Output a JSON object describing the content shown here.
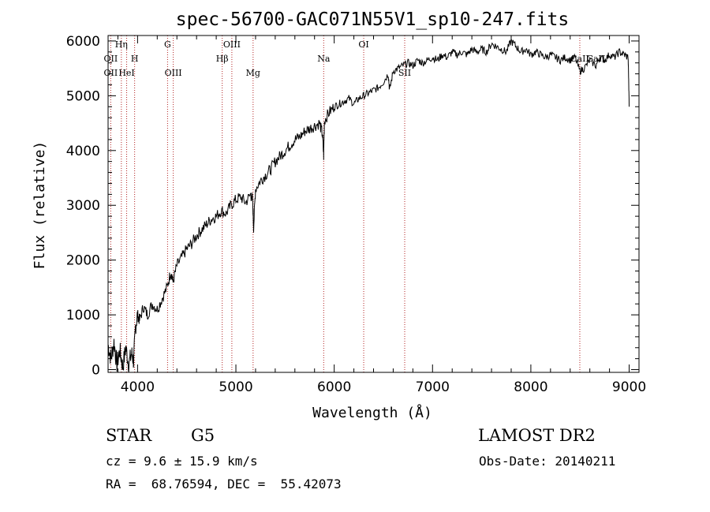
{
  "chart_data": {
    "type": "line",
    "title": "spec-56700-GAC071N55V1_sp10-247.fits",
    "xlabel": "Wavelength (Å)",
    "ylabel": "Flux (relative)",
    "xlim": [
      3700,
      9100
    ],
    "ylim": [
      -50,
      6100
    ],
    "xticks": [
      4000,
      5000,
      6000,
      7000,
      8000,
      9000
    ],
    "yticks": [
      0,
      1000,
      2000,
      3000,
      4000,
      5000,
      6000
    ],
    "xtick_labels": [
      "4000",
      "5000",
      "6000",
      "7000",
      "8000",
      "9000"
    ],
    "ytick_labels": [
      "0",
      "1000",
      "2000",
      "3000",
      "4000",
      "5000",
      "6000"
    ],
    "series": [
      {
        "values_x": [
          3700,
          3730,
          3760,
          3790,
          3820,
          3850,
          3880,
          3910,
          3940,
          3960,
          3980,
          4000,
          4020,
          4060,
          4100,
          4150,
          4200,
          4250,
          4300,
          4340,
          4360,
          4400,
          4450,
          4500,
          4550,
          4600,
          4650,
          4700,
          4750,
          4800,
          4850,
          4900,
          4950,
          5000,
          5050,
          5100,
          5150,
          5170,
          5180,
          5200,
          5250,
          5300,
          5350,
          5400,
          5450,
          5500,
          5550,
          5600,
          5650,
          5700,
          5750,
          5800,
          5850,
          5880,
          5893,
          5900,
          5950,
          6000,
          6050,
          6100,
          6150,
          6200,
          6250,
          6300,
          6350,
          6400,
          6450,
          6500,
          6550,
          6563,
          6600,
          6650,
          6700,
          6750,
          6800,
          6850,
          6900,
          6950,
          7000,
          7050,
          7100,
          7150,
          7200,
          7250,
          7300,
          7350,
          7400,
          7450,
          7500,
          7550,
          7600,
          7650,
          7700,
          7750,
          7800,
          7850,
          7900,
          7950,
          8000,
          8050,
          8100,
          8150,
          8200,
          8250,
          8300,
          8350,
          8400,
          8450,
          8498,
          8542,
          8600,
          8662,
          8700,
          8750,
          8800,
          8850,
          8900,
          8950,
          8990,
          9000
        ],
        "values_y": [
          450,
          200,
          500,
          100,
          350,
          50,
          400,
          100,
          300,
          150,
          800,
          1000,
          900,
          1150,
          1000,
          1200,
          1100,
          1300,
          1500,
          1800,
          1600,
          1900,
          2050,
          2200,
          2300,
          2450,
          2550,
          2650,
          2750,
          2800,
          2900,
          2850,
          3000,
          3100,
          3150,
          3050,
          3200,
          3100,
          2600,
          3300,
          3450,
          3550,
          3650,
          3800,
          3900,
          4000,
          4100,
          4200,
          4250,
          4350,
          4400,
          4450,
          4500,
          4300,
          3900,
          4550,
          4700,
          4800,
          4850,
          4900,
          4950,
          4850,
          4950,
          5000,
          5050,
          5100,
          5150,
          5250,
          5400,
          5100,
          5450,
          5500,
          5550,
          5600,
          5550,
          5650,
          5600,
          5650,
          5700,
          5650,
          5750,
          5700,
          5800,
          5750,
          5800,
          5750,
          5850,
          5800,
          5850,
          5800,
          5950,
          5900,
          5850,
          5800,
          6000,
          5900,
          5800,
          5850,
          5750,
          5800,
          5750,
          5700,
          5750,
          5700,
          5650,
          5700,
          5650,
          5700,
          5450,
          5500,
          5650,
          5550,
          5700,
          5650,
          5750,
          5700,
          5800,
          5750,
          5700,
          4800
        ]
      }
    ],
    "spectral_lines": [
      {
        "label": "OII",
        "x": 3727,
        "row": 2
      },
      {
        "label": "Hη",
        "x": 3835,
        "row": 0
      },
      {
        "label": "OII",
        "x": 3727,
        "row": 1
      },
      {
        "label": "HeI",
        "x": 3889,
        "row": 2
      },
      {
        "label": "H",
        "x": 3970,
        "row": 1
      },
      {
        "label": "G",
        "x": 4305,
        "row": 0
      },
      {
        "label": "OIII",
        "x": 4363,
        "row": 2
      },
      {
        "label": "OIII",
        "x": 4959,
        "row": 0
      },
      {
        "label": "Hβ",
        "x": 4861,
        "row": 1
      },
      {
        "label": "Mg",
        "x": 5175,
        "row": 2
      },
      {
        "label": "Na",
        "x": 5893,
        "row": 1
      },
      {
        "label": "OI",
        "x": 6300,
        "row": 0
      },
      {
        "label": "SII",
        "x": 6717,
        "row": 2
      },
      {
        "label": "CaII",
        "x": 8498,
        "row": 1
      },
      {
        "label": "CaII",
        "x": 8662,
        "row": 1
      }
    ],
    "marker_lines_x": [
      3727,
      3835,
      3889,
      3970,
      4305,
      4363,
      4861,
      4959,
      5175,
      5893,
      6300,
      6717,
      8498
    ]
  },
  "info": {
    "object_class": "STAR",
    "subclass": "G5",
    "survey": "LAMOST DR2",
    "redshift": "cz = 9.6 ± 15.9 km/s",
    "obs_date": "Obs-Date: 20140211",
    "coords": "RA =  68.76594, DEC =  55.42073"
  },
  "colors": {
    "spectrum": "#000000",
    "marker_lines": "#b22222"
  }
}
